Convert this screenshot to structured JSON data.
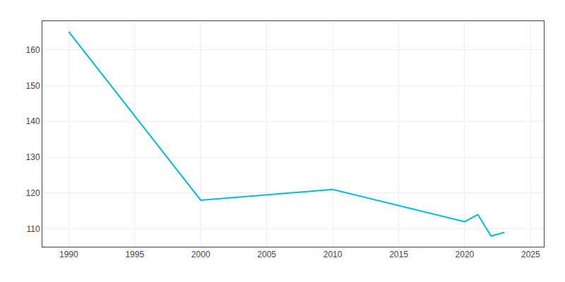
{
  "chart_data": {
    "type": "line",
    "x": [
      1990,
      2000,
      2010,
      2020,
      2021,
      2022,
      2023
    ],
    "values": [
      165,
      118,
      121,
      112,
      114,
      108,
      109
    ],
    "color": "#00bcd4",
    "xlim": [
      1988,
      2026
    ],
    "ylim": [
      105,
      168
    ],
    "xticks": [
      1990,
      1995,
      2000,
      2005,
      2010,
      2015,
      2020,
      2025
    ],
    "yticks": [
      110,
      120,
      130,
      140,
      150,
      160
    ],
    "grid": true
  }
}
